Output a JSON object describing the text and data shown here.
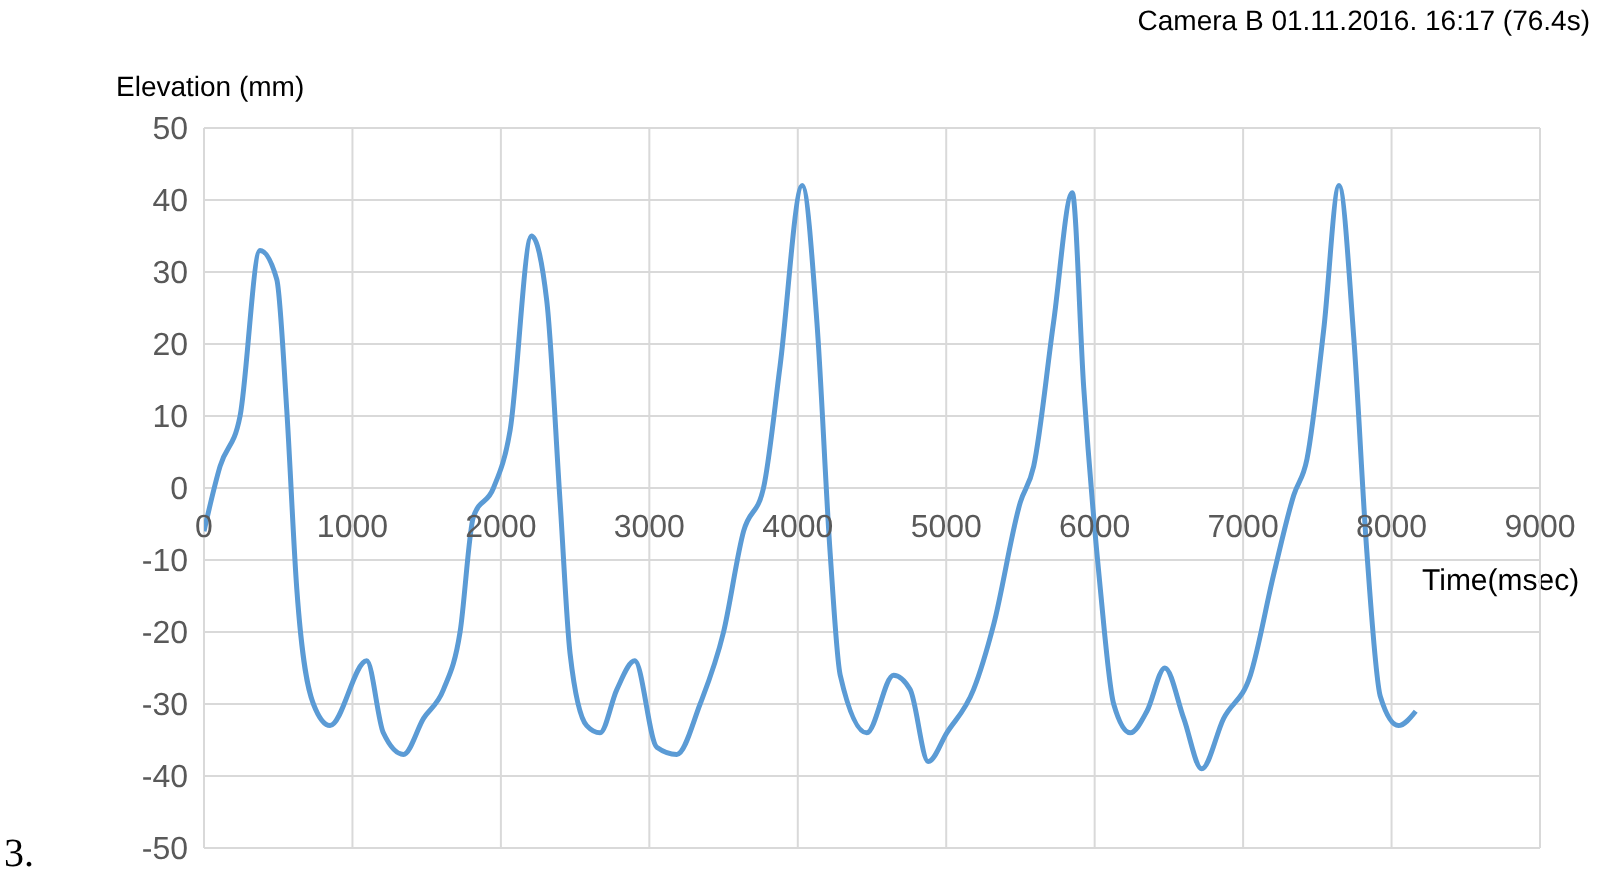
{
  "chart_data": {
    "type": "line",
    "title": "Camera B 01.11.2016. 16:17 (76.4s)",
    "ylabel": "Elevation (mm)",
    "xlabel": "Time(msec)",
    "annotations": [
      "3."
    ],
    "xlim": [
      0,
      9000
    ],
    "xticks": [
      0,
      1000,
      2000,
      3000,
      4000,
      5000,
      6000,
      7000,
      8000,
      9000
    ],
    "ylim": [
      -50,
      50
    ],
    "yticks": [
      -50,
      -40,
      -30,
      -20,
      -10,
      0,
      10,
      20,
      30,
      40,
      50
    ],
    "grid": true,
    "legend": false,
    "marker": "none",
    "line_style": "solid",
    "series": [
      {
        "color": "#5b9bd5",
        "x": [
          0,
          108,
          243,
          377,
          490,
          557,
          625,
          737,
          849,
          1096,
          1208,
          1344,
          1479,
          1613,
          1725,
          1815,
          1950,
          2062,
          2206,
          2309,
          2399,
          2466,
          2578,
          2668,
          2781,
          2902,
          3050,
          3185,
          3342,
          3500,
          3635,
          3769,
          3881,
          4030,
          4129,
          4218,
          4286,
          4465,
          4645,
          4757,
          4879,
          5004,
          5184,
          5319,
          5499,
          5589,
          5723,
          5849,
          5926,
          6038,
          6128,
          6240,
          6352,
          6473,
          6600,
          6721,
          6869,
          7049,
          7206,
          7341,
          7430,
          7543,
          7646,
          7745,
          7834,
          7925,
          8046,
          8163
        ],
        "values": [
          -6,
          3,
          10,
          33,
          29,
          11,
          -14,
          -30,
          -33,
          -24,
          -34,
          -37,
          -32,
          -28,
          -20,
          -4,
          0,
          8,
          35,
          26,
          -2,
          -23,
          -33,
          -34,
          -28,
          -24,
          -36,
          -37,
          -30,
          -20,
          -6,
          0,
          17,
          42,
          23,
          -9,
          -26,
          -34,
          -26,
          -28,
          -38,
          -34,
          -28,
          -19,
          -2,
          3,
          23,
          41,
          14,
          -14,
          -30,
          -34,
          -31,
          -25,
          -32,
          -39,
          -32,
          -26,
          -12,
          -1,
          4,
          22,
          42,
          21,
          -9,
          -29,
          -33,
          -31
        ]
      }
    ]
  }
}
